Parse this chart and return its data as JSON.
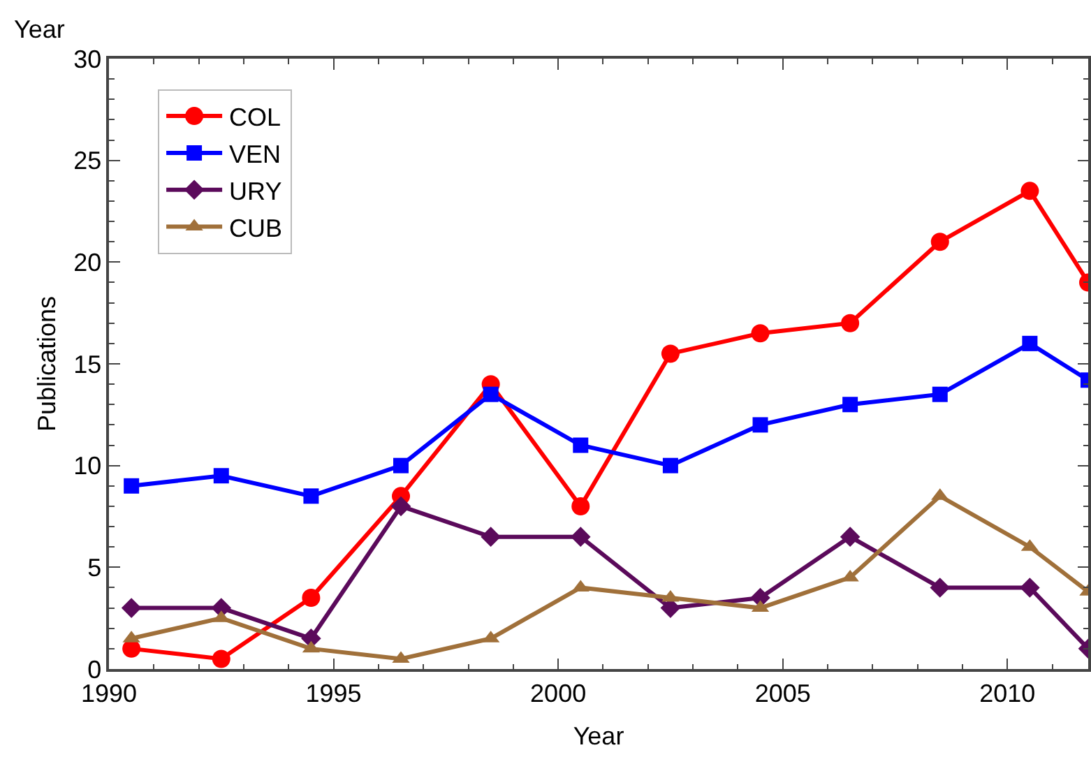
{
  "chart_data": {
    "type": "line",
    "xlabel": "Year",
    "ylabel": "Publications",
    "annotations": [
      "Year"
    ],
    "x": [
      1990.5,
      1992.5,
      1994.5,
      1996.5,
      1998.5,
      2000.5,
      2002.5,
      2004.5,
      2006.5,
      2008.5,
      2010.5,
      2011.8
    ],
    "series": [
      {
        "name": "COL",
        "color": "#ff0000",
        "marker": "circle",
        "values": [
          1,
          0.5,
          3.5,
          8.5,
          14,
          8,
          15.5,
          16.5,
          17,
          21,
          23.5,
          19
        ]
      },
      {
        "name": "VEN",
        "color": "#0000ff",
        "marker": "square",
        "values": [
          9,
          9.5,
          8.5,
          10,
          13.5,
          11,
          10,
          12,
          13,
          13.5,
          16,
          14.2
        ]
      },
      {
        "name": "URY",
        "color": "#5b0a5b",
        "marker": "diamond",
        "values": [
          3,
          3,
          1.5,
          8,
          6.5,
          6.5,
          3,
          3.5,
          6.5,
          4,
          4,
          1
        ]
      },
      {
        "name": "CUB",
        "color": "#a0703a",
        "marker": "triangle",
        "values": [
          1.5,
          2.5,
          1,
          0.5,
          1.5,
          4,
          3.5,
          3,
          4.5,
          8.5,
          6,
          3.8
        ]
      }
    ],
    "xlim": [
      1990,
      2011.8
    ],
    "xticks": [
      1990,
      1995,
      2000,
      2005,
      2010
    ],
    "ylim": [
      0,
      30
    ],
    "yticks": [
      0,
      5,
      10,
      15,
      20,
      25,
      30
    ],
    "legend": "top left",
    "line_style": "solid"
  }
}
